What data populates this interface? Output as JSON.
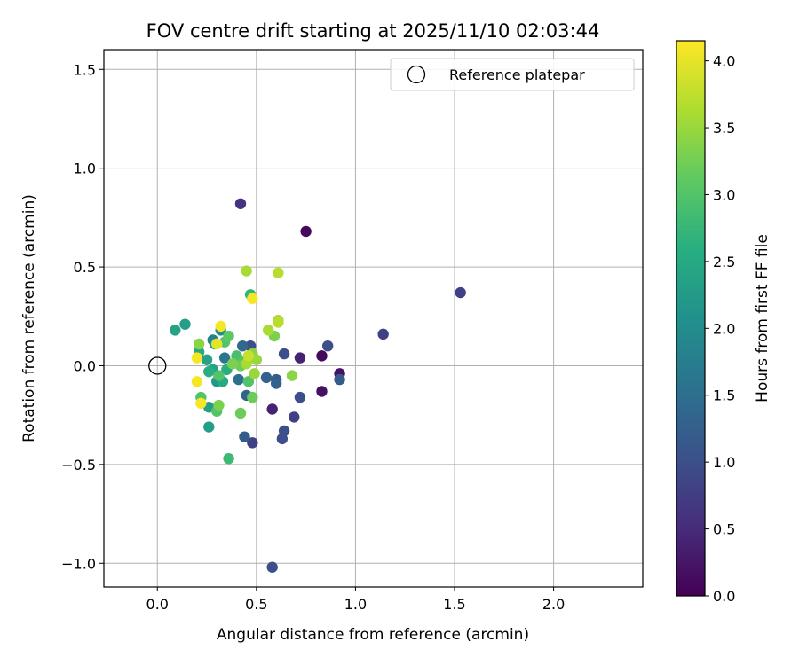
{
  "chart_data": {
    "type": "scatter",
    "title": "FOV centre drift starting at 2025/11/10 02:03:44",
    "xlabel": "Angular distance from reference (arcmin)",
    "ylabel": "Rotation from reference (arcmin)",
    "xlim": [
      -0.27,
      2.45
    ],
    "ylim": [
      -1.12,
      1.6
    ],
    "xticks": [
      0.0,
      0.5,
      1.0,
      1.5,
      2.0
    ],
    "xtick_labels": [
      "0.0",
      "0.5",
      "1.0",
      "1.5",
      "2.0"
    ],
    "yticks": [
      -1.0,
      -0.5,
      0.0,
      0.5,
      1.0,
      1.5
    ],
    "ytick_labels": [
      "−1.0",
      "−0.5",
      "0.0",
      "0.5",
      "1.0",
      "1.5"
    ],
    "grid": true,
    "legend": {
      "position": "top-right",
      "entries": [
        "Reference platepar"
      ]
    },
    "reference_point": {
      "x": 0.0,
      "y": 0.0
    },
    "colorbar": {
      "label": "Hours from first FF file",
      "range": [
        0.0,
        4.15
      ],
      "colormap": "viridis",
      "ticks": [
        0.0,
        0.5,
        1.0,
        1.5,
        2.0,
        2.5,
        3.0,
        3.5,
        4.0
      ],
      "tick_labels": [
        "0.0",
        "0.5",
        "1.0",
        "1.5",
        "2.0",
        "2.5",
        "3.0",
        "3.5",
        "4.0"
      ]
    },
    "points": [
      {
        "x": 0.42,
        "y": 0.82,
        "c": 0.6
      },
      {
        "x": 0.75,
        "y": 0.68,
        "c": 0.1
      },
      {
        "x": 1.53,
        "y": 0.37,
        "c": 0.8
      },
      {
        "x": 1.14,
        "y": 0.16,
        "c": 0.8
      },
      {
        "x": 0.86,
        "y": 0.1,
        "c": 1.0
      },
      {
        "x": 0.83,
        "y": 0.05,
        "c": 0.1
      },
      {
        "x": 0.92,
        "y": -0.04,
        "c": 0.2
      },
      {
        "x": 0.92,
        "y": -0.07,
        "c": 1.2
      },
      {
        "x": 0.83,
        "y": -0.13,
        "c": 0.2
      },
      {
        "x": 0.72,
        "y": 0.04,
        "c": 0.4
      },
      {
        "x": 0.64,
        "y": 0.06,
        "c": 1.0
      },
      {
        "x": 0.72,
        "y": -0.16,
        "c": 1.0
      },
      {
        "x": 0.69,
        "y": -0.26,
        "c": 0.8
      },
      {
        "x": 0.58,
        "y": -0.22,
        "c": 0.4
      },
      {
        "x": 0.64,
        "y": -0.33,
        "c": 1.0
      },
      {
        "x": 0.63,
        "y": -0.37,
        "c": 1.0
      },
      {
        "x": 0.48,
        "y": -0.39,
        "c": 0.8
      },
      {
        "x": 0.44,
        "y": -0.36,
        "c": 1.2
      },
      {
        "x": 0.58,
        "y": -1.02,
        "c": 1.0
      },
      {
        "x": 0.6,
        "y": -0.07,
        "c": 1.2
      },
      {
        "x": 0.6,
        "y": -0.09,
        "c": 1.3
      },
      {
        "x": 0.55,
        "y": -0.06,
        "c": 1.3
      },
      {
        "x": 0.47,
        "y": 0.1,
        "c": 1.0
      },
      {
        "x": 0.43,
        "y": 0.1,
        "c": 1.4
      },
      {
        "x": 0.41,
        "y": -0.07,
        "c": 1.5
      },
      {
        "x": 0.45,
        "y": -0.15,
        "c": 1.3
      },
      {
        "x": 0.34,
        "y": 0.04,
        "c": 1.6
      },
      {
        "x": 0.28,
        "y": 0.13,
        "c": 1.8
      },
      {
        "x": 0.32,
        "y": 0.18,
        "c": 2.0
      },
      {
        "x": 0.29,
        "y": 0.11,
        "c": 2.2
      },
      {
        "x": 0.14,
        "y": 0.21,
        "c": 2.3
      },
      {
        "x": 0.09,
        "y": 0.18,
        "c": 2.4
      },
      {
        "x": 0.21,
        "y": 0.07,
        "c": 2.5
      },
      {
        "x": 0.25,
        "y": 0.03,
        "c": 2.4
      },
      {
        "x": 0.28,
        "y": -0.02,
        "c": 2.4
      },
      {
        "x": 0.3,
        "y": -0.08,
        "c": 2.2
      },
      {
        "x": 0.33,
        "y": -0.08,
        "c": 2.5
      },
      {
        "x": 0.26,
        "y": -0.21,
        "c": 2.3
      },
      {
        "x": 0.26,
        "y": -0.31,
        "c": 2.3
      },
      {
        "x": 0.22,
        "y": -0.16,
        "c": 3.0
      },
      {
        "x": 0.3,
        "y": -0.23,
        "c": 3.0
      },
      {
        "x": 0.31,
        "y": -0.2,
        "c": 3.3
      },
      {
        "x": 0.36,
        "y": -0.47,
        "c": 2.8
      },
      {
        "x": 0.42,
        "y": -0.24,
        "c": 3.2
      },
      {
        "x": 0.46,
        "y": -0.08,
        "c": 3.0
      },
      {
        "x": 0.48,
        "y": -0.16,
        "c": 3.2
      },
      {
        "x": 0.49,
        "y": -0.04,
        "c": 3.5
      },
      {
        "x": 0.47,
        "y": 0.36,
        "c": 2.7
      },
      {
        "x": 0.48,
        "y": 0.34,
        "c": 4.1
      },
      {
        "x": 0.45,
        "y": 0.48,
        "c": 3.6
      },
      {
        "x": 0.61,
        "y": 0.47,
        "c": 3.7
      },
      {
        "x": 0.61,
        "y": 0.23,
        "c": 3.6
      },
      {
        "x": 0.61,
        "y": 0.22,
        "c": 3.7
      },
      {
        "x": 0.56,
        "y": 0.18,
        "c": 3.6
      },
      {
        "x": 0.59,
        "y": 0.15,
        "c": 3.3
      },
      {
        "x": 0.36,
        "y": 0.15,
        "c": 3.1
      },
      {
        "x": 0.34,
        "y": 0.12,
        "c": 3.0
      },
      {
        "x": 0.32,
        "y": 0.2,
        "c": 4.1
      },
      {
        "x": 0.3,
        "y": 0.11,
        "c": 4.0
      },
      {
        "x": 0.21,
        "y": 0.11,
        "c": 3.4
      },
      {
        "x": 0.2,
        "y": 0.04,
        "c": 4.1
      },
      {
        "x": 0.2,
        "y": -0.08,
        "c": 4.1
      },
      {
        "x": 0.22,
        "y": -0.19,
        "c": 4.1
      },
      {
        "x": 0.38,
        "y": 0.01,
        "c": 3.3
      },
      {
        "x": 0.4,
        "y": 0.05,
        "c": 2.9
      },
      {
        "x": 0.43,
        "y": 0.02,
        "c": 3.0
      },
      {
        "x": 0.45,
        "y": 0.01,
        "c": 3.6
      },
      {
        "x": 0.46,
        "y": 0.05,
        "c": 3.8
      },
      {
        "x": 0.48,
        "y": 0.06,
        "c": 3.4
      },
      {
        "x": 0.5,
        "y": 0.03,
        "c": 3.5
      },
      {
        "x": 0.42,
        "y": 0.0,
        "c": 3.2
      },
      {
        "x": 0.68,
        "y": -0.05,
        "c": 3.4
      },
      {
        "x": 0.31,
        "y": -0.05,
        "c": 3.0
      },
      {
        "x": 0.35,
        "y": -0.02,
        "c": 2.6
      },
      {
        "x": 0.26,
        "y": -0.03,
        "c": 2.6
      }
    ]
  }
}
